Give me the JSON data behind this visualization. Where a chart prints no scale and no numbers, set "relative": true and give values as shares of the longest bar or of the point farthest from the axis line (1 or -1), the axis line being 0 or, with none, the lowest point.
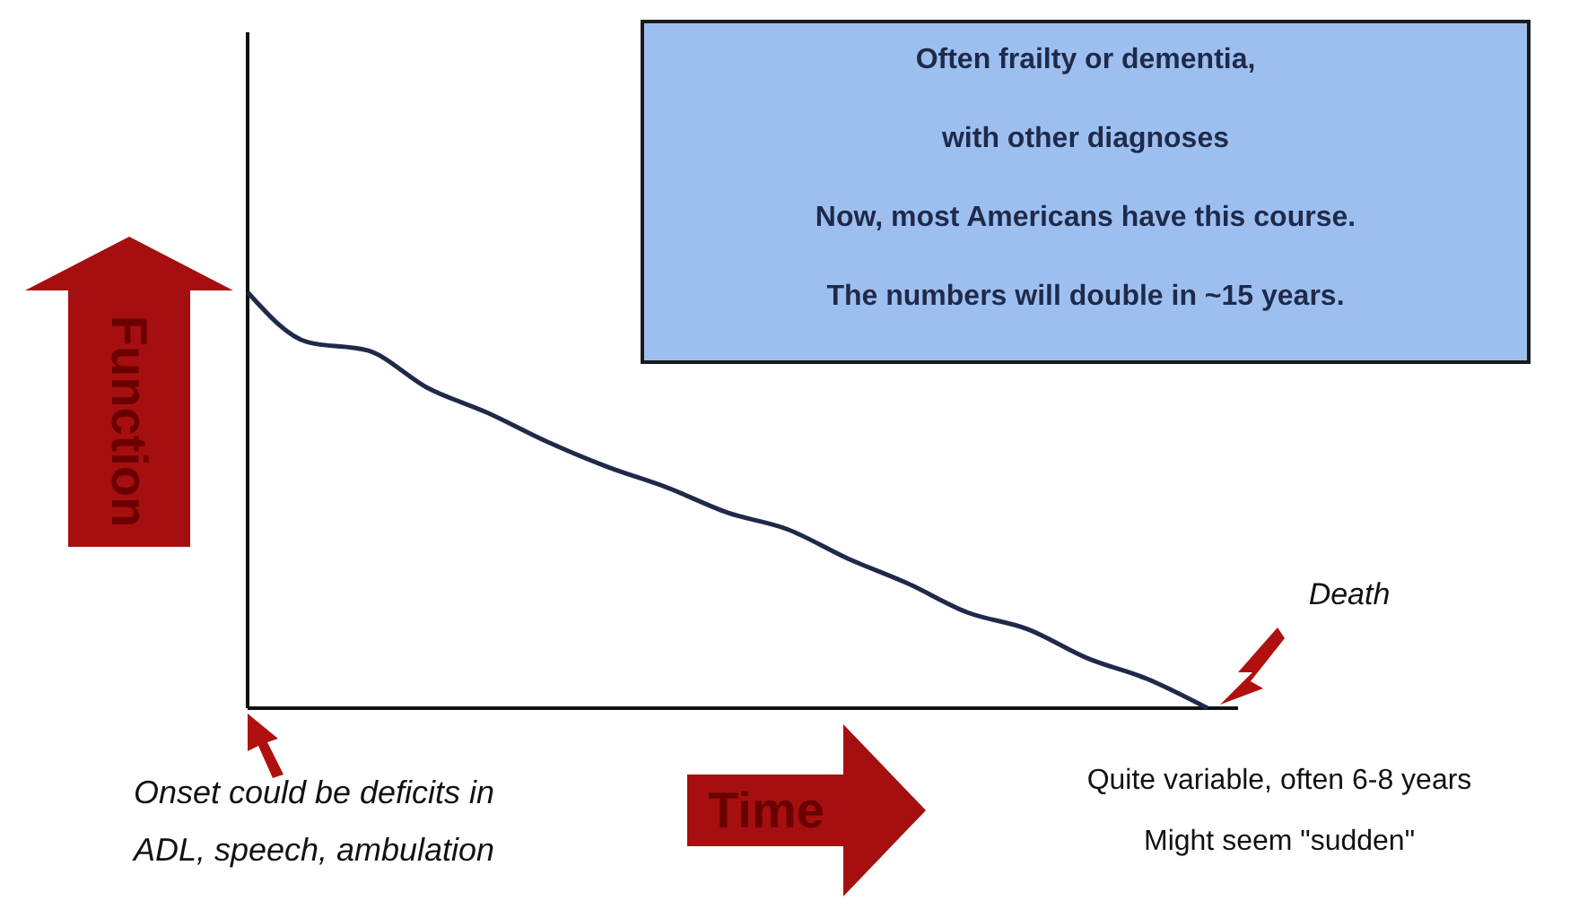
{
  "chart_data": {
    "type": "line",
    "relative": true,
    "xlabel": "Time",
    "ylabel": "Function",
    "categories": [
      null,
      null,
      null,
      null,
      null,
      null,
      null,
      null,
      null,
      null,
      null,
      null,
      null,
      null,
      null,
      null,
      null
    ],
    "series": [
      {
        "color": "#1f2a4a",
        "values": [
          1,
          0.88,
          0.86,
          0.77,
          0.71,
          0.64,
          0.58,
          0.53,
          0.47,
          0.43,
          0.36,
          0.3,
          0.23,
          0.19,
          0.12,
          0.07,
          0
        ]
      }
    ],
    "annotations": [
      "Often frailty or dementia,\nwith other diagnoses\nNow, most Americans have this course.\nThe numbers will double in ~15 years.",
      "Death",
      "Onset could be deficits in\nADL, speech, ambulation",
      "Quite variable, often 6-8 years\nMight seem \"sudden\""
    ],
    "grid": false,
    "marker": "none",
    "line_style": "solid"
  }
}
